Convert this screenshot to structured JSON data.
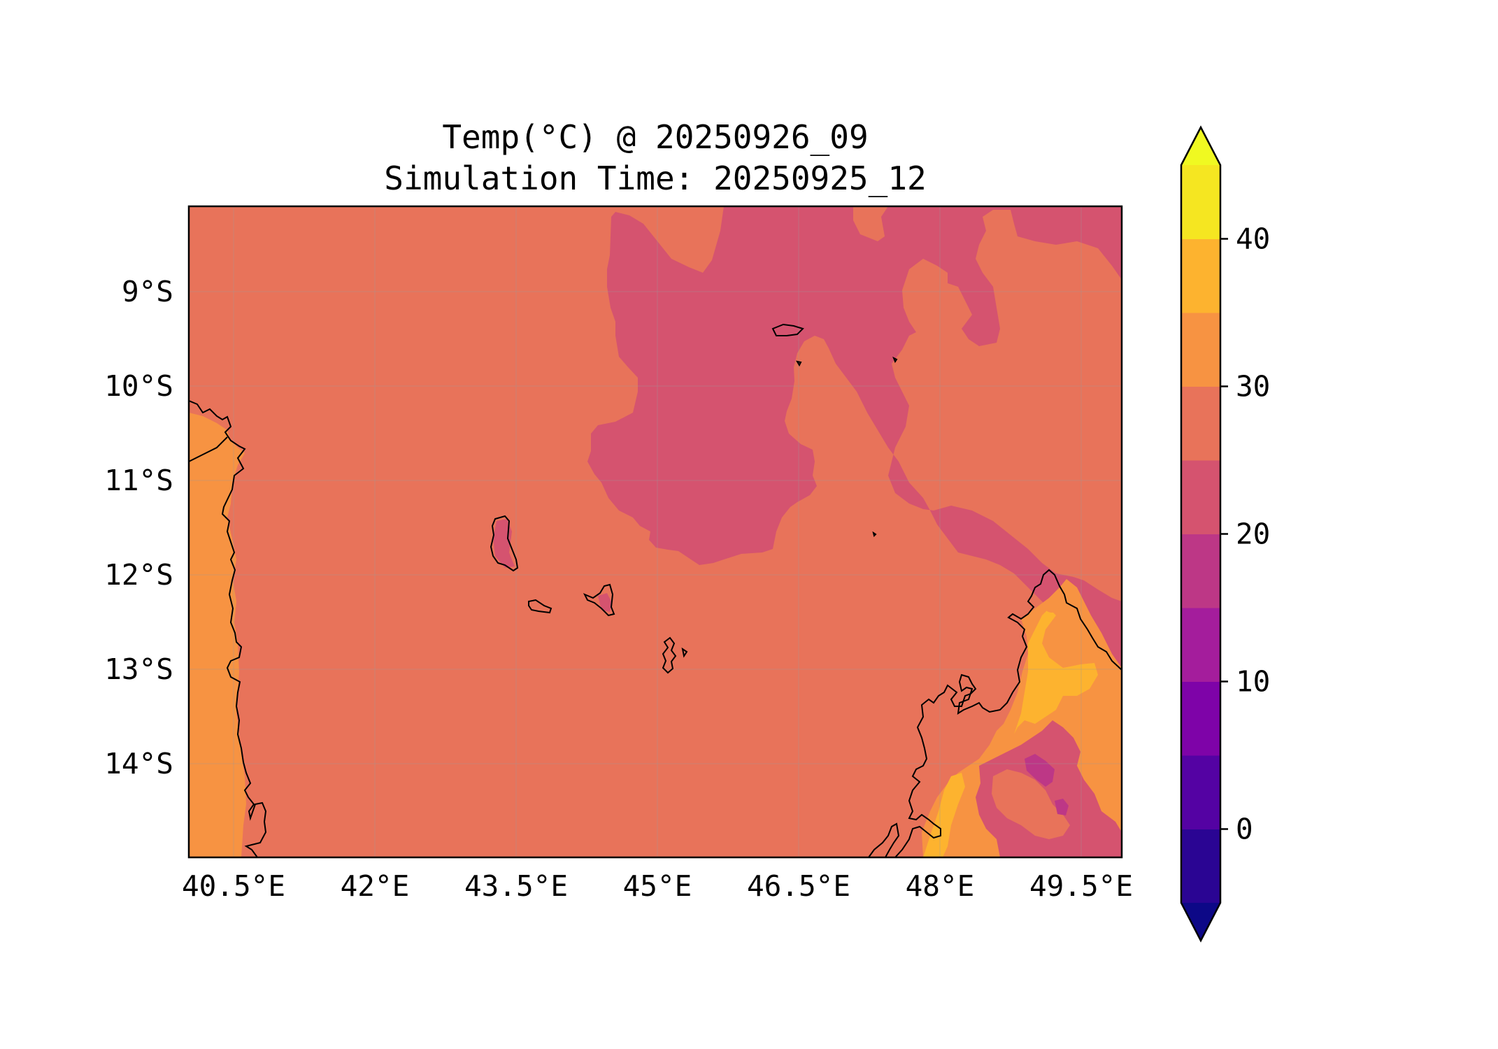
{
  "title": {
    "line1": "Temp(°C) @ 20250926_09",
    "line2": "Simulation Time: 20250925_12"
  },
  "map": {
    "x_ticks": [
      "40.5°E",
      "42°E",
      "43.5°E",
      "45°E",
      "46.5°E",
      "48°E",
      "49.5°E"
    ],
    "y_ticks": [
      "9°S",
      "10°S",
      "11°S",
      "12°S",
      "13°S",
      "14°S"
    ],
    "x_tick_values": [
      40.5,
      42.0,
      43.5,
      45.0,
      46.5,
      48.0,
      49.5
    ],
    "y_tick_values": [
      -9,
      -10,
      -11,
      -12,
      -13,
      -14
    ],
    "lon_range": [
      40.0,
      49.9
    ],
    "lat_range": [
      -15.0,
      -8.1
    ],
    "gridlines": true,
    "coastlines": true,
    "fill_colors": {
      "15_20": "#bd3786",
      "20_25": "#d5536f",
      "25_30": "#e8735a",
      "30_35": "#f79342",
      "35_40": "#fdb32f"
    }
  },
  "colorbar": {
    "levels": [
      -5,
      0,
      5,
      10,
      15,
      20,
      25,
      30,
      35,
      40,
      45
    ],
    "colors": [
      "#2a0593",
      "#5402a3",
      "#7e03a8",
      "#a41d9c",
      "#bd3786",
      "#d5536f",
      "#e8735a",
      "#f79342",
      "#fdb32f",
      "#f5e621"
    ],
    "under_color": "#0d0887",
    "over_color": "#f0f921",
    "ticks": [
      "0",
      "10",
      "20",
      "30",
      "40"
    ],
    "tick_values": [
      0,
      10,
      20,
      30,
      40
    ],
    "extend": "both"
  }
}
